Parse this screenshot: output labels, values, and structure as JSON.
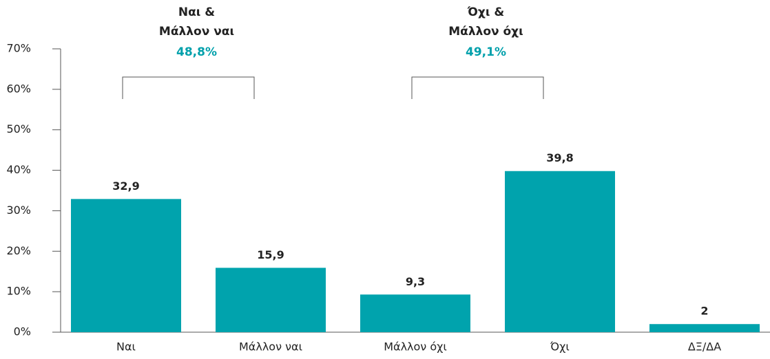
{
  "chart_data": {
    "type": "bar",
    "categories": [
      "Ναι",
      "Μάλλον ναι",
      "Μάλλον όχι",
      "Όχι",
      "ΔΞ/ΔΑ"
    ],
    "values": [
      32.9,
      15.9,
      9.3,
      39.8,
      2
    ],
    "value_labels": [
      "32,9",
      "15,9",
      "9,3",
      "39,8",
      "2"
    ],
    "color": "#00a3ad",
    "ylim": [
      0,
      70
    ],
    "yticks": [
      {
        "value": 0,
        "label": "0%"
      },
      {
        "value": 10,
        "label": "10%"
      },
      {
        "value": 20,
        "label": "20%"
      },
      {
        "value": 30,
        "label": "30%"
      },
      {
        "value": 40,
        "label": "40%"
      },
      {
        "value": 50,
        "label": "50%"
      },
      {
        "value": 60,
        "label": "60%"
      },
      {
        "value": 70,
        "label": "70%"
      }
    ],
    "grid": false,
    "annotations": [
      {
        "lines": [
          "Ναι &",
          "Μάλλον ναι"
        ],
        "label": "48,8%"
      },
      {
        "lines": [
          "Όχι &",
          "Μάλλον όχι"
        ],
        "label": "49,1%"
      }
    ]
  }
}
